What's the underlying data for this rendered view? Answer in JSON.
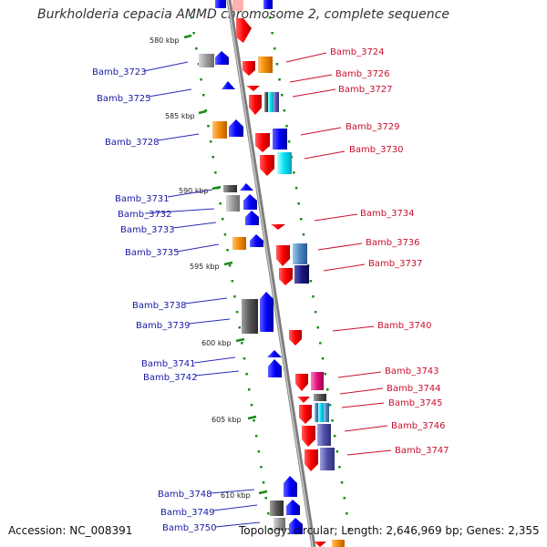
{
  "title": "Burkholderia cepacia AMMD chromosome 2, complete sequence",
  "footer": {
    "accession": "Accession: NC_008391",
    "summary": "Topology: circular; Length: 2,646,969 bp; Genes: 2,355"
  },
  "colors": {
    "forward_strand_genes": "#ff0000",
    "reverse_strand_genes": "#0000ff",
    "label_left": "#1a1aa6",
    "label_right": "#c8102e",
    "backbone": "#999999",
    "dots": "#1a8a1a"
  },
  "ruler": [
    {
      "label": "580 kbp"
    },
    {
      "label": "585 kbp"
    },
    {
      "label": "590 kbp"
    },
    {
      "label": "595 kbp"
    },
    {
      "label": "600 kbp"
    },
    {
      "label": "605 kbp"
    },
    {
      "label": "610 kbp"
    }
  ],
  "left_labels": [
    {
      "name": "Bamb_3723"
    },
    {
      "name": "Bamb_3725"
    },
    {
      "name": "Bamb_3728"
    },
    {
      "name": "Bamb_3731"
    },
    {
      "name": "Bamb_3732"
    },
    {
      "name": "Bamb_3733"
    },
    {
      "name": "Bamb_3735"
    },
    {
      "name": "Bamb_3738"
    },
    {
      "name": "Bamb_3739"
    },
    {
      "name": "Bamb_3741"
    },
    {
      "name": "Bamb_3742"
    },
    {
      "name": "Bamb_3748"
    },
    {
      "name": "Bamb_3749"
    },
    {
      "name": "Bamb_3750"
    }
  ],
  "right_labels": [
    {
      "name": "Bamb_3724"
    },
    {
      "name": "Bamb_3726"
    },
    {
      "name": "Bamb_3727"
    },
    {
      "name": "Bamb_3729"
    },
    {
      "name": "Bamb_3730"
    },
    {
      "name": "Bamb_3734"
    },
    {
      "name": "Bamb_3736"
    },
    {
      "name": "Bamb_3737"
    },
    {
      "name": "Bamb_3740"
    },
    {
      "name": "Bamb_3743"
    },
    {
      "name": "Bamb_3744"
    },
    {
      "name": "Bamb_3745"
    },
    {
      "name": "Bamb_3746"
    },
    {
      "name": "Bamb_3747"
    }
  ]
}
